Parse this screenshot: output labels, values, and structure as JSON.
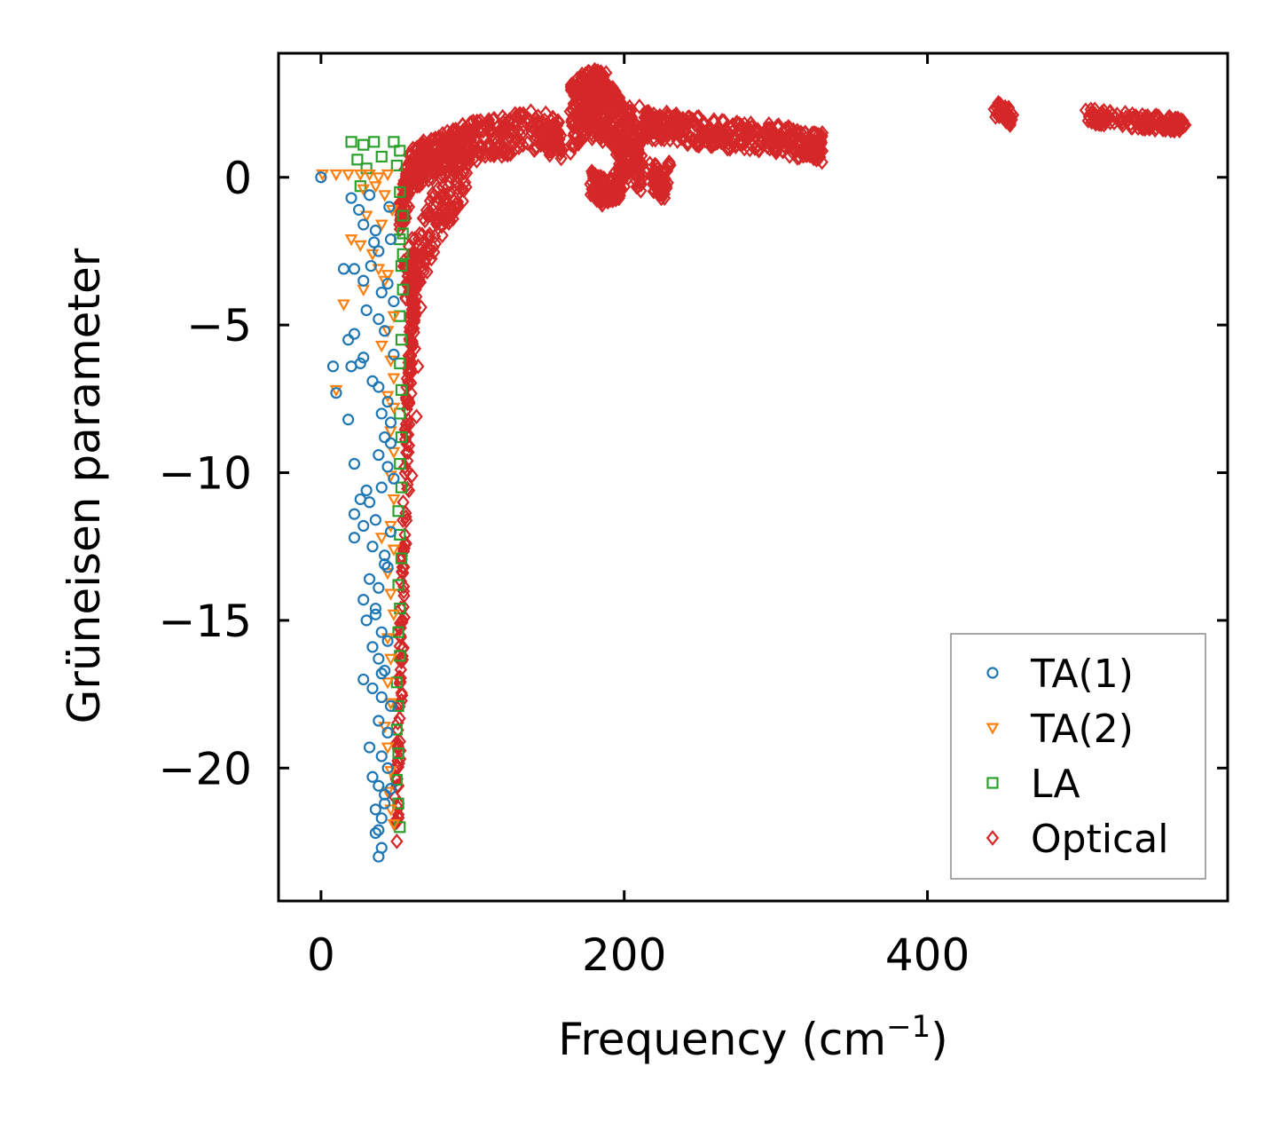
{
  "chart_data": {
    "type": "scatter",
    "title": "",
    "xlabel": "Frequency (cm",
    "xlabel_sup": "−1",
    "xlabel_close": ")",
    "ylabel": "Grüneisen parameter",
    "xlim": [
      -28,
      598
    ],
    "ylim": [
      -24.5,
      4.2
    ],
    "xticks": [
      0,
      200,
      400
    ],
    "xtick_labels": [
      "0",
      "200",
      "400"
    ],
    "yticks": [
      0,
      -5,
      -10,
      -15,
      -20
    ],
    "ytick_labels": [
      "0",
      "−5",
      "−10",
      "−15",
      "−20"
    ],
    "grid": false,
    "legend_position": "bottom-right",
    "series": [
      {
        "name": "TA(1)",
        "marker": "circle",
        "color": "#1f77b4",
        "points": [
          [
            0,
            0
          ],
          [
            20,
            -0.7
          ],
          [
            25,
            -1.1
          ],
          [
            32,
            -0.6
          ],
          [
            28,
            -1.6
          ],
          [
            35,
            -2.2
          ],
          [
            22,
            -3.1
          ],
          [
            28,
            -3.5
          ],
          [
            33,
            -3.0
          ],
          [
            38,
            -2.5
          ],
          [
            45,
            -1.0
          ],
          [
            40,
            -3.9
          ],
          [
            30,
            -4.5
          ],
          [
            38,
            -4.8
          ],
          [
            42,
            -5.2
          ],
          [
            15,
            -3.1
          ],
          [
            18,
            -5.5
          ],
          [
            22,
            -5.3
          ],
          [
            26,
            -6.3
          ],
          [
            20,
            -6.4
          ],
          [
            8,
            -6.4
          ],
          [
            10,
            -7.3
          ],
          [
            28,
            -6.1
          ],
          [
            34,
            -6.9
          ],
          [
            38,
            -7.1
          ],
          [
            44,
            -7.6
          ],
          [
            18,
            -8.2
          ],
          [
            40,
            -8.0
          ],
          [
            46,
            -9.0
          ],
          [
            42,
            -8.8
          ],
          [
            22,
            -9.7
          ],
          [
            38,
            -9.4
          ],
          [
            44,
            -9.8
          ],
          [
            48,
            -10.2
          ],
          [
            40,
            -10.5
          ],
          [
            30,
            -10.6
          ],
          [
            26,
            -10.9
          ],
          [
            32,
            -11.0
          ],
          [
            22,
            -11.4
          ],
          [
            28,
            -11.8
          ],
          [
            36,
            -11.6
          ],
          [
            22,
            -12.2
          ],
          [
            34,
            -12.5
          ],
          [
            42,
            -12.8
          ],
          [
            44,
            -13.2
          ],
          [
            32,
            -13.6
          ],
          [
            38,
            -13.9
          ],
          [
            28,
            -14.3
          ],
          [
            36,
            -14.6
          ],
          [
            30,
            -15.0
          ],
          [
            40,
            -15.4
          ],
          [
            44,
            -15.7
          ],
          [
            34,
            -15.9
          ],
          [
            38,
            -16.3
          ],
          [
            42,
            -16.7
          ],
          [
            28,
            -17.0
          ],
          [
            34,
            -17.3
          ],
          [
            40,
            -17.6
          ],
          [
            46,
            -17.9
          ],
          [
            38,
            -18.4
          ],
          [
            44,
            -18.8
          ],
          [
            32,
            -19.3
          ],
          [
            40,
            -19.6
          ],
          [
            44,
            -20.0
          ],
          [
            34,
            -20.3
          ],
          [
            38,
            -20.6
          ],
          [
            42,
            -20.9
          ],
          [
            36,
            -21.4
          ],
          [
            40,
            -21.7
          ],
          [
            38,
            -22.1
          ],
          [
            40,
            -22.7
          ],
          [
            38,
            -23.0
          ],
          [
            36,
            -22.2
          ],
          [
            42,
            -21.2
          ],
          [
            46,
            -20.7
          ],
          [
            40,
            -16.8
          ],
          [
            36,
            -14.8
          ],
          [
            46,
            -12.0
          ],
          [
            48,
            -6.0
          ],
          [
            48,
            -4.2
          ],
          [
            44,
            -3.6
          ],
          [
            46,
            -2.1
          ],
          [
            36,
            -1.8
          ],
          [
            42,
            -13.1
          ],
          [
            46,
            -8.3
          ]
        ]
      },
      {
        "name": "TA(2)",
        "marker": "triangle-down",
        "color": "#ff7f0e",
        "points": [
          [
            1,
            0.1
          ],
          [
            10,
            0.1
          ],
          [
            18,
            0.1
          ],
          [
            26,
            0.1
          ],
          [
            32,
            0.1
          ],
          [
            38,
            0.0
          ],
          [
            44,
            0.1
          ],
          [
            28,
            -0.4
          ],
          [
            36,
            -0.3
          ],
          [
            42,
            -0.6
          ],
          [
            30,
            -1.3
          ],
          [
            40,
            -1.6
          ],
          [
            20,
            -2.1
          ],
          [
            26,
            -2.3
          ],
          [
            34,
            -2.6
          ],
          [
            38,
            -3.1
          ],
          [
            44,
            -3.3
          ],
          [
            28,
            -3.8
          ],
          [
            15,
            -4.3
          ],
          [
            48,
            -4.7
          ],
          [
            44,
            -5.2
          ],
          [
            40,
            -5.7
          ],
          [
            46,
            -6.2
          ],
          [
            48,
            -6.8
          ],
          [
            10,
            -7.2
          ],
          [
            44,
            -7.4
          ],
          [
            48,
            -7.8
          ],
          [
            46,
            -8.6
          ],
          [
            48,
            -9.3
          ],
          [
            46,
            -10.1
          ],
          [
            48,
            -10.9
          ],
          [
            46,
            -11.8
          ],
          [
            48,
            -12.6
          ],
          [
            44,
            -13.4
          ],
          [
            46,
            -14.1
          ],
          [
            48,
            -14.8
          ],
          [
            44,
            -15.6
          ],
          [
            46,
            -16.3
          ],
          [
            44,
            -17.1
          ],
          [
            46,
            -17.8
          ],
          [
            42,
            -18.6
          ],
          [
            44,
            -19.3
          ],
          [
            46,
            -20.1
          ],
          [
            44,
            -20.8
          ],
          [
            46,
            -21.4
          ],
          [
            48,
            -21.9
          ],
          [
            40,
            -12.2
          ],
          [
            42,
            -3.5
          ],
          [
            47,
            -1.1
          ]
        ]
      },
      {
        "name": "LA",
        "marker": "square",
        "color": "#2ca02c",
        "points": [
          [
            20,
            1.2
          ],
          [
            28,
            1.1
          ],
          [
            35,
            1.2
          ],
          [
            48,
            1.2
          ],
          [
            40,
            0.7
          ],
          [
            52,
            0.9
          ],
          [
            24,
            0.6
          ],
          [
            30,
            0.3
          ],
          [
            50,
            0.4
          ],
          [
            26,
            -0.3
          ],
          [
            52,
            -0.5
          ],
          [
            54,
            -1.3
          ],
          [
            52,
            -2.1
          ],
          [
            53,
            -3.0
          ],
          [
            54,
            -3.8
          ],
          [
            52,
            -4.7
          ],
          [
            53,
            -5.5
          ],
          [
            52,
            -6.3
          ],
          [
            53,
            -7.2
          ],
          [
            52,
            -8.0
          ],
          [
            53,
            -8.8
          ],
          [
            52,
            -9.7
          ],
          [
            53,
            -10.5
          ],
          [
            51,
            -11.3
          ],
          [
            52,
            -12.1
          ],
          [
            53,
            -12.9
          ],
          [
            51,
            -13.8
          ],
          [
            52,
            -14.6
          ],
          [
            51,
            -15.4
          ],
          [
            52,
            -16.2
          ],
          [
            50,
            -17.1
          ],
          [
            51,
            -17.9
          ],
          [
            50,
            -18.7
          ],
          [
            51,
            -19.5
          ],
          [
            50,
            -20.4
          ],
          [
            51,
            -21.2
          ],
          [
            52,
            -22.0
          ],
          [
            54,
            -1.9
          ],
          [
            54,
            -2.6
          ]
        ]
      },
      {
        "name": "Optical",
        "marker": "diamond",
        "color": "#d62728",
        "bands": [
          {
            "x": [
              52,
              58,
              70,
              85,
              100,
              120,
              145,
              158
            ],
            "y": [
              -1.5,
              0.2,
              0.6,
              0.9,
              1.2,
              1.4,
              1.6,
              1.3
            ],
            "spread": 0.7,
            "count": 500
          },
          {
            "x": [
              55,
              65,
              80,
              95
            ],
            "y": [
              -3.5,
              -2.5,
              -1.0,
              0.2
            ],
            "spread": 1.0,
            "count": 160
          },
          {
            "x": [
              165,
              175,
              182,
              190,
              198,
              205,
              212
            ],
            "y": [
              2.0,
              2.4,
              2.6,
              2.2,
              1.6,
              1.0,
              0.4
            ],
            "spread": 1.2,
            "count": 420
          },
          {
            "x": [
              178,
              186,
              194,
              200
            ],
            "y": [
              -0.2,
              -0.5,
              -0.4,
              0.0
            ],
            "spread": 0.5,
            "count": 120
          },
          {
            "x": [
              212,
              225,
              240,
              260,
              280,
              300,
              320,
              330
            ],
            "y": [
              1.8,
              1.7,
              1.6,
              1.5,
              1.4,
              1.3,
              1.1,
              1.0
            ],
            "spread": 0.5,
            "count": 380
          },
          {
            "x": [
              218,
              224,
              230
            ],
            "y": [
              0.0,
              -0.3,
              0.2
            ],
            "spread": 0.5,
            "count": 80
          },
          {
            "x": [
              445,
              450,
              455
            ],
            "y": [
              2.3,
              2.2,
              2.0
            ],
            "spread": 0.25,
            "count": 60
          },
          {
            "x": [
              505,
              520,
              540,
              560,
              570
            ],
            "y": [
              2.1,
              2.0,
              1.9,
              1.8,
              1.75
            ],
            "spread": 0.25,
            "count": 150
          },
          {
            "x": [
              50,
              52,
              54,
              56,
              58,
              60,
              62
            ],
            "y": [
              -22.0,
              -18.0,
              -14.0,
              -10.0,
              -7.0,
              -5.0,
              -3.0
            ],
            "spread": 0.5,
            "count": 180
          }
        ],
        "points": [
          [
            60,
            0.6
          ],
          [
            68,
            0.8
          ],
          [
            75,
            -2.0
          ],
          [
            70,
            -3.2
          ],
          [
            66,
            -4.4
          ],
          [
            62,
            -5.8
          ],
          [
            64,
            -6.4
          ],
          [
            58,
            -7.6
          ],
          [
            63,
            -8.1
          ],
          [
            57,
            -9.6
          ],
          [
            60,
            -10.1
          ],
          [
            58,
            -10.6
          ],
          [
            56,
            -11.5
          ],
          [
            56,
            -12.4
          ],
          [
            54,
            -13.4
          ],
          [
            55,
            -14.9
          ],
          [
            53,
            -16.4
          ],
          [
            52,
            -17.8
          ],
          [
            52,
            -19.1
          ],
          [
            51,
            -20.6
          ],
          [
            50,
            -21.8
          ],
          [
            228,
            2.2
          ],
          [
            210,
            2.4
          ],
          [
            58,
            -1.0
          ],
          [
            64,
            -2.7
          ],
          [
            72,
            -0.8
          ],
          [
            80,
            -1.2
          ]
        ]
      }
    ]
  }
}
